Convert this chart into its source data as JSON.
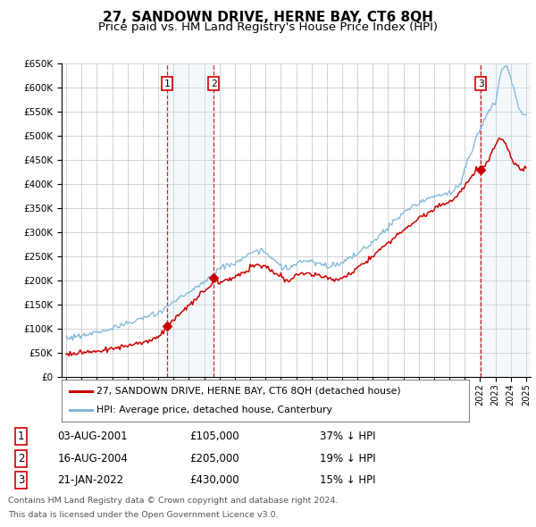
{
  "title": "27, SANDOWN DRIVE, HERNE BAY, CT6 8QH",
  "subtitle": "Price paid vs. HM Land Registry's House Price Index (HPI)",
  "title_fontsize": 11,
  "subtitle_fontsize": 9.5,
  "ylim": [
    0,
    650000
  ],
  "yticks": [
    0,
    50000,
    100000,
    150000,
    200000,
    250000,
    300000,
    350000,
    400000,
    450000,
    500000,
    550000,
    600000,
    650000
  ],
  "ytick_labels": [
    "£0",
    "£50K",
    "£100K",
    "£150K",
    "£200K",
    "£250K",
    "£300K",
    "£350K",
    "£400K",
    "£450K",
    "£500K",
    "£550K",
    "£600K",
    "£650K"
  ],
  "bg_color": "#ffffff",
  "grid_color": "#cccccc",
  "hpi_line_color": "#7eb6d9",
  "price_line_color": "#cc0000",
  "shade_color": "#d0e4f5",
  "transactions": [
    {
      "date_num": 2001.58,
      "price": 105000,
      "label": "1",
      "date_str": "03-AUG-2001",
      "hpi_pct": "37% ↓ HPI"
    },
    {
      "date_num": 2004.62,
      "price": 205000,
      "label": "2",
      "date_str": "16-AUG-2004",
      "hpi_pct": "19% ↓ HPI"
    },
    {
      "date_num": 2022.05,
      "price": 430000,
      "label": "3",
      "date_str": "21-JAN-2022",
      "hpi_pct": "15% ↓ HPI"
    }
  ],
  "legend_labels": [
    "27, SANDOWN DRIVE, HERNE BAY, CT6 8QH (detached house)",
    "HPI: Average price, detached house, Canterbury"
  ],
  "footer_line1": "Contains HM Land Registry data © Crown copyright and database right 2024.",
  "footer_line2": "This data is licensed under the Open Government Licence v3.0."
}
